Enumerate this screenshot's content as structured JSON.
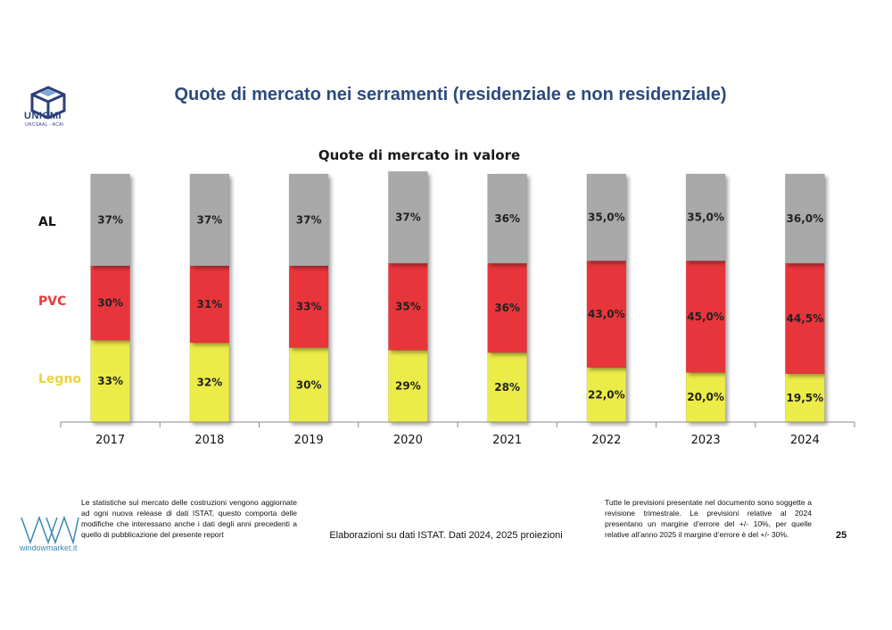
{
  "header": {
    "title": "Quote di mercato nei serramenti (residenziale e non residenziale)",
    "logo_name": "UNICMI",
    "logo_sub": "UNCSAAL - ACAI"
  },
  "chart_data": {
    "type": "bar",
    "stacked": true,
    "title": "Quote di mercato in valore",
    "categories": [
      "2017",
      "2018",
      "2019",
      "2020",
      "2021",
      "2022",
      "2023",
      "2024"
    ],
    "series": [
      {
        "name": "Legno",
        "color": "#ecec48",
        "label_color": "#e8d53a",
        "values": [
          33,
          32,
          30,
          29,
          28,
          22.0,
          20.0,
          19.5
        ],
        "labels": [
          "33%",
          "32%",
          "30%",
          "29%",
          "28%",
          "22,0%",
          "20,0%",
          "19,5%"
        ]
      },
      {
        "name": "PVC",
        "color": "#e8363a",
        "label_color": "#e63a3a",
        "values": [
          30,
          31,
          33,
          35,
          36,
          43.0,
          45.0,
          44.5
        ],
        "labels": [
          "30%",
          "31%",
          "33%",
          "35%",
          "36%",
          "43,0%",
          "45,0%",
          "44,5%"
        ]
      },
      {
        "name": "AL",
        "color": "#a9a9a9",
        "label_color": "#111111",
        "values": [
          37,
          37,
          37,
          37,
          36,
          35.0,
          35.0,
          36.0
        ],
        "labels": [
          "37%",
          "37%",
          "37%",
          "37%",
          "36%",
          "35,0%",
          "35,0%",
          "36,0%"
        ]
      }
    ],
    "ylim": [
      0,
      100
    ],
    "grid": false,
    "legend": "left"
  },
  "footer": {
    "note_left": "Le statistiche sul mercato delle costruzioni vengono aggiornate ad ogni nuova release di dati ISTAT, questo comporta delle modifiche che interessano anche i dati degli anni precedenti a quello di pubblicazione del presente report",
    "note_center": "Elaborazioni su dati ISTAT. Dati 2024, 2025 proiezioni",
    "note_right": "Tutte le previsioni presentate nel documento sono soggette a revisione trimestrale. Le previsioni relative al 2024 presentano un margine d’errore del +/- 10%, per quelle relative all’anno 2025 il margine d’errore è del +/- 30%.",
    "page_number": "25",
    "brand": "windowmarket.it"
  }
}
